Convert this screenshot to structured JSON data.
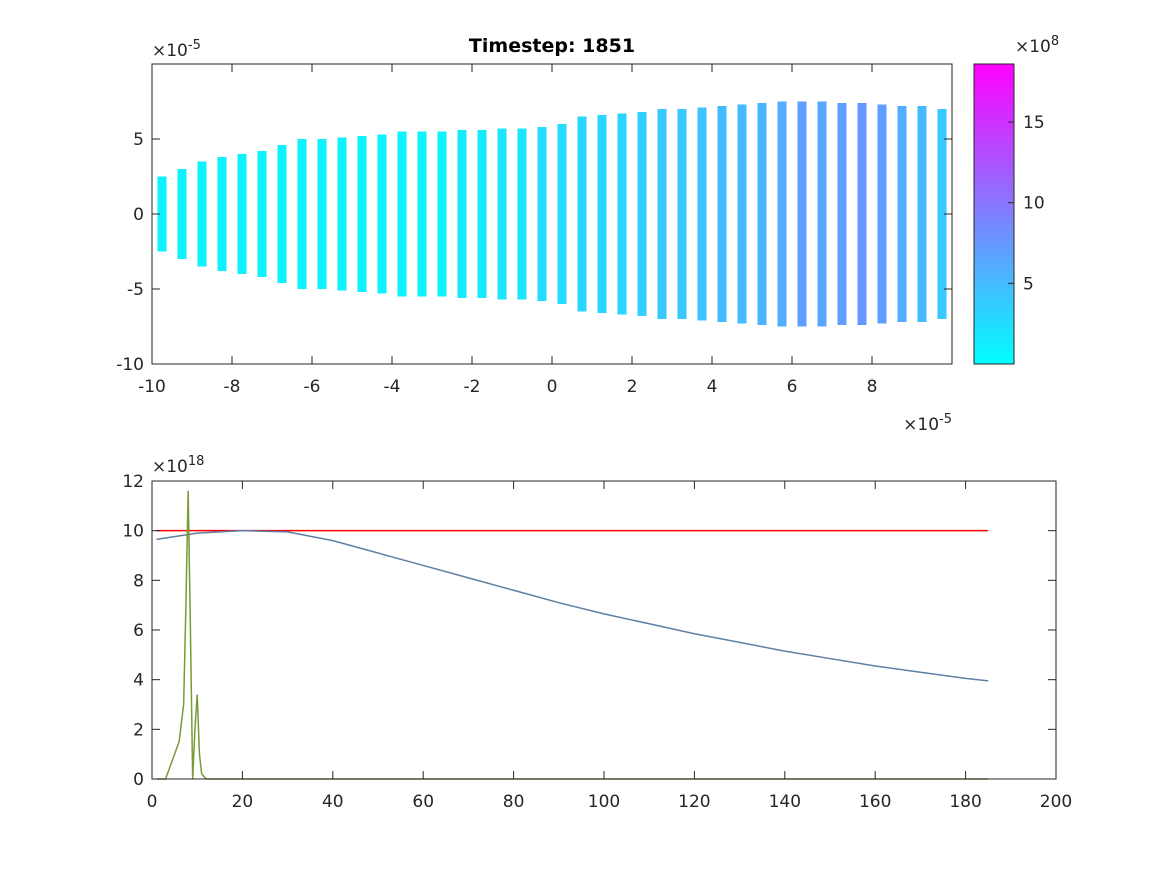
{
  "chart_data": [
    {
      "type": "stripe",
      "title": "Timestep: 1851",
      "x": [
        -9.75,
        -9.25,
        -8.75,
        -8.25,
        -7.75,
        -7.25,
        -6.75,
        -6.25,
        -5.75,
        -5.25,
        -4.75,
        -4.25,
        -3.75,
        -3.25,
        -2.75,
        -2.25,
        -1.75,
        -1.25,
        -0.75,
        -0.25,
        0.25,
        0.75,
        1.25,
        1.75,
        2.25,
        2.75,
        3.25,
        3.75,
        4.25,
        4.75,
        5.25,
        5.75,
        6.25,
        6.75,
        7.25,
        7.75,
        8.25,
        8.75,
        9.25,
        9.75
      ],
      "values": [
        2.5,
        3,
        3.5,
        3.8,
        4,
        4.2,
        4.6,
        5,
        5,
        5.1,
        5.2,
        5.3,
        5.5,
        5.5,
        5.5,
        5.6,
        5.6,
        5.7,
        5.7,
        5.8,
        6,
        6.5,
        6.6,
        6.7,
        6.8,
        7,
        7,
        7.1,
        7.2,
        7.3,
        7.4,
        7.5,
        7.5,
        7.5,
        7.4,
        7.4,
        7.3,
        7.2,
        7.2,
        7
      ],
      "color_values": [
        1,
        1,
        1,
        1,
        1,
        1,
        1,
        1,
        1,
        1,
        1,
        1,
        1,
        1,
        1,
        1.5,
        1.5,
        2,
        2,
        2.5,
        2.5,
        3,
        3,
        3,
        3.5,
        4,
        4,
        4.5,
        5,
        5,
        5.5,
        6,
        7,
        6.5,
        7,
        7.5,
        7,
        6,
        5,
        4
      ],
      "xlim": [
        -10,
        10
      ],
      "ylim": [
        -10,
        10
      ],
      "xticks": [
        -10,
        -8,
        -6,
        -4,
        -2,
        0,
        2,
        4,
        6,
        8
      ],
      "yticks": [
        -10,
        -5,
        0,
        5
      ],
      "x_multiplier": "×10",
      "x_exponent": "-5",
      "y_multiplier": "×10",
      "y_exponent": "-5",
      "colormap": [
        "#00ffff",
        "#ff00ff"
      ],
      "clim": [
        0,
        18.6
      ],
      "colorbar_ticks": [
        5,
        10,
        15
      ],
      "colorbar_multiplier": "×10",
      "colorbar_exponent": "8"
    },
    {
      "type": "line",
      "series": [
        {
          "color": "#ff0000",
          "x": [
            1,
            185
          ],
          "values": [
            10,
            10
          ]
        },
        {
          "color": "#5f7fa3",
          "x": [
            1,
            10,
            20,
            30,
            40,
            50,
            60,
            70,
            80,
            90,
            100,
            110,
            120,
            130,
            140,
            150,
            160,
            170,
            180,
            185
          ],
          "values": [
            9.65,
            9.9,
            10,
            9.95,
            9.6,
            9.1,
            8.6,
            8.1,
            7.6,
            7.1,
            6.65,
            6.25,
            5.85,
            5.5,
            5.15,
            4.85,
            4.55,
            4.3,
            4.05,
            3.95
          ]
        },
        {
          "color": "#7a9a3a",
          "x": [
            1,
            3,
            4,
            5,
            6,
            7,
            7.5,
            8,
            8.5,
            9,
            9.5,
            10,
            10.5,
            11,
            12,
            185
          ],
          "values": [
            0,
            0,
            0.5,
            1,
            1.5,
            3,
            7,
            11.6,
            6,
            0,
            2,
            3.4,
            1,
            0.2,
            0,
            0
          ]
        }
      ],
      "xlim": [
        0,
        200
      ],
      "ylim": [
        0,
        12
      ],
      "xticks": [
        0,
        20,
        40,
        60,
        80,
        100,
        120,
        140,
        160,
        180,
        200
      ],
      "yticks": [
        0,
        2,
        4,
        6,
        8,
        10,
        12
      ],
      "y_multiplier": "×10",
      "y_exponent": "18"
    }
  ]
}
